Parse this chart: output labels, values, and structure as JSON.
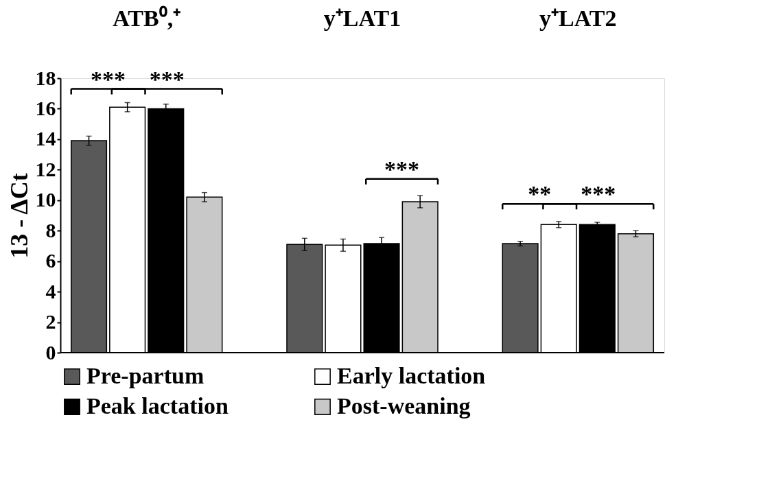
{
  "chart_data": {
    "type": "bar",
    "ylabel": "13 - ΔCt",
    "categories": [
      "ATB⁰,⁺",
      "y⁺LAT1",
      "y⁺LAT2"
    ],
    "series": [
      {
        "name": "Pre-partum",
        "color": "#595959",
        "values": [
          13.9,
          7.1,
          7.15
        ],
        "errors": [
          0.3,
          0.4,
          0.15
        ]
      },
      {
        "name": "Early lactation",
        "color": "#ffffff",
        "values": [
          16.1,
          7.05,
          8.4
        ],
        "errors": [
          0.3,
          0.4,
          0.2
        ]
      },
      {
        "name": "Peak lactation",
        "color": "#000000",
        "values": [
          16.0,
          7.15,
          8.4
        ],
        "errors": [
          0.3,
          0.4,
          0.15
        ]
      },
      {
        "name": "Post-weaning",
        "color": "#c8c8c8",
        "values": [
          10.2,
          9.9,
          7.8
        ],
        "errors": [
          0.3,
          0.4,
          0.2
        ]
      }
    ],
    "ylim": [
      0,
      18
    ],
    "yticks": [
      0,
      2,
      4,
      6,
      8,
      10,
      12,
      14,
      16,
      18
    ],
    "grid": false,
    "legend": "bottom",
    "annotations": [
      "***",
      "***",
      "***",
      "**",
      "***"
    ]
  }
}
